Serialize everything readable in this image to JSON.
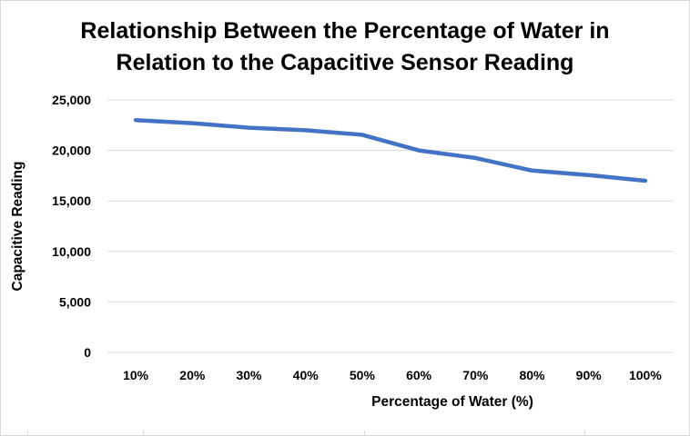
{
  "chart_data": {
    "type": "line",
    "title_line1": "Relationship Between the Percentage of Water in",
    "title_line2": "Relation to the Capacitive Sensor Reading",
    "xlabel": "Percentage of Water (%)",
    "ylabel": "Capacitive Reading",
    "categories": [
      "10%",
      "20%",
      "30%",
      "40%",
      "50%",
      "60%",
      "70%",
      "80%",
      "90%",
      "100%"
    ],
    "series": [
      {
        "values": [
          23000,
          22700,
          22250,
          22000,
          21550,
          20000,
          19250,
          18000,
          17550,
          17000
        ]
      }
    ],
    "ylim": [
      0,
      25000
    ],
    "yticks": [
      0,
      5000,
      10000,
      15000,
      20000,
      25000
    ],
    "ytick_labels": [
      "0",
      "5,000",
      "10,000",
      "15,000",
      "20,000",
      "25,000"
    ],
    "grid": true,
    "legend": "none",
    "line_color": "#4472c4",
    "grid_color": "#d9d9d9"
  }
}
